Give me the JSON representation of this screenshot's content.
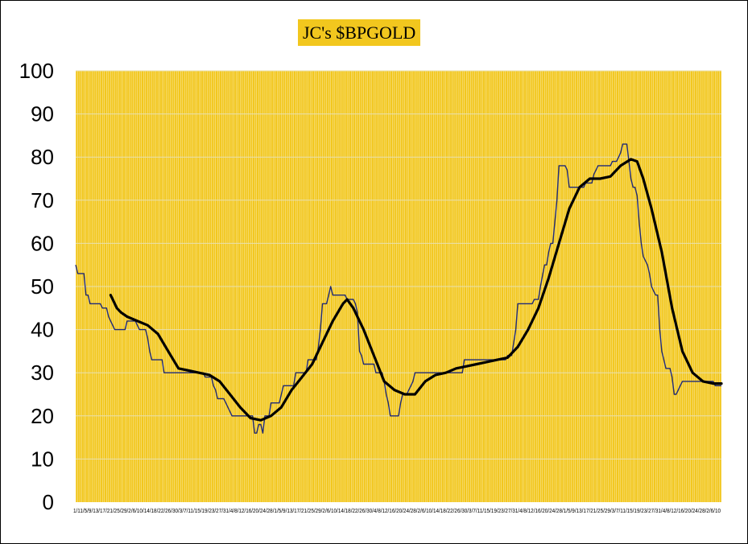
{
  "colors": {
    "plot_background": "#F2C71E",
    "vertical_gridline": "#FFFFFF",
    "horizontal_gridline": "#E8E0B0",
    "title_background": "#F2C71E",
    "raw_series": "#1F2A7A",
    "smoothed_series": "#000000"
  },
  "chart_data": {
    "type": "line",
    "title": "JC's $BPGOLD",
    "xlabel": "",
    "ylabel": "",
    "ylim": [
      0,
      100
    ],
    "y_ticks": [
      "0",
      "10",
      "20",
      "30",
      "40",
      "50",
      "60",
      "70",
      "80",
      "90",
      "100"
    ],
    "x_tick_text": "1/11/5/9/13/17/21/25/29/2/6/10/14/18/22/26/30/3/7/11/15/19/23/27/31/4/8/12/16/20/24/28/1/5/9/13/17/21/25/29/2/6/10/14/18/22/26/30/4/8/12/16/20/24/28/2/6/10/14/18/22/26/30/3/7/11/15/19/23/27/31/4/8/12/16/20/24/28/1/5/9/13/17/21/25/29/3/7/11/15/19/23/27/31/4/8/12/16/20/24/28/2/6/10",
    "grid": {
      "vertical": true,
      "horizontal": true
    },
    "legend": "none",
    "series": [
      {
        "points": [
          [
            0,
            55
          ],
          [
            1,
            53
          ],
          [
            4,
            53
          ],
          [
            5,
            48
          ],
          [
            6,
            48
          ],
          [
            7,
            46
          ],
          [
            12,
            46
          ],
          [
            13,
            45
          ],
          [
            15,
            45
          ],
          [
            16,
            43
          ],
          [
            17,
            42
          ],
          [
            19,
            40
          ],
          [
            24,
            40
          ],
          [
            25,
            42
          ],
          [
            29,
            42
          ],
          [
            30,
            41
          ],
          [
            31,
            40
          ],
          [
            34,
            40
          ],
          [
            35,
            38
          ],
          [
            36,
            35
          ],
          [
            37,
            33
          ],
          [
            42,
            33
          ],
          [
            43,
            30
          ],
          [
            62,
            30
          ],
          [
            63,
            29
          ],
          [
            66,
            29
          ],
          [
            67,
            27
          ],
          [
            68,
            26
          ],
          [
            69,
            24
          ],
          [
            72,
            24
          ],
          [
            73,
            23
          ],
          [
            74,
            22
          ],
          [
            75,
            21
          ],
          [
            76,
            20
          ],
          [
            86,
            20
          ],
          [
            87,
            16
          ],
          [
            88,
            16
          ],
          [
            89,
            18
          ],
          [
            90,
            18
          ],
          [
            91,
            16
          ],
          [
            92,
            20
          ],
          [
            94,
            20
          ],
          [
            95,
            23
          ],
          [
            99,
            23
          ],
          [
            100,
            25
          ],
          [
            101,
            27
          ],
          [
            106,
            27
          ],
          [
            107,
            30
          ],
          [
            112,
            30
          ],
          [
            113,
            33
          ],
          [
            117,
            33
          ],
          [
            118,
            36
          ],
          [
            119,
            40
          ],
          [
            120,
            46
          ],
          [
            122,
            46
          ],
          [
            123,
            48
          ],
          [
            124,
            50
          ],
          [
            125,
            48
          ],
          [
            131,
            48
          ],
          [
            132,
            47
          ],
          [
            135,
            47
          ],
          [
            136,
            46
          ],
          [
            137,
            44
          ],
          [
            138,
            35
          ],
          [
            139,
            34
          ],
          [
            140,
            32
          ],
          [
            145,
            32
          ],
          [
            146,
            30
          ],
          [
            149,
            30
          ],
          [
            150,
            28
          ],
          [
            151,
            25
          ],
          [
            152,
            23
          ],
          [
            153,
            20
          ],
          [
            157,
            20
          ],
          [
            158,
            23
          ],
          [
            159,
            25
          ],
          [
            161,
            25
          ],
          [
            164,
            28
          ],
          [
            165,
            30
          ],
          [
            188,
            30
          ],
          [
            189,
            33
          ],
          [
            209,
            33
          ],
          [
            210,
            34
          ],
          [
            212,
            34
          ],
          [
            213,
            37
          ],
          [
            214,
            40
          ],
          [
            215,
            46
          ],
          [
            222,
            46
          ],
          [
            223,
            47
          ],
          [
            225,
            47
          ],
          [
            226,
            50
          ],
          [
            228,
            55
          ],
          [
            229,
            55
          ],
          [
            230,
            58
          ],
          [
            231,
            60
          ],
          [
            232,
            60
          ],
          [
            233,
            65
          ],
          [
            234,
            70
          ],
          [
            235,
            78
          ],
          [
            238,
            78
          ],
          [
            239,
            77
          ],
          [
            240,
            73
          ],
          [
            247,
            73
          ],
          [
            248,
            74
          ],
          [
            251,
            74
          ],
          [
            252,
            76
          ],
          [
            254,
            78
          ],
          [
            260,
            78
          ],
          [
            261,
            79
          ],
          [
            263,
            79
          ],
          [
            264,
            80
          ],
          [
            265,
            81
          ],
          [
            266,
            83
          ],
          [
            268,
            83
          ],
          [
            269,
            79
          ],
          [
            270,
            75
          ],
          [
            271,
            73
          ],
          [
            272,
            73
          ],
          [
            273,
            71
          ],
          [
            274,
            65
          ],
          [
            275,
            60
          ],
          [
            276,
            57
          ],
          [
            277,
            56
          ],
          [
            278,
            55
          ],
          [
            279,
            53
          ],
          [
            280,
            50
          ],
          [
            281,
            49
          ],
          [
            282,
            48
          ],
          [
            283,
            48
          ],
          [
            284,
            40
          ],
          [
            285,
            35
          ],
          [
            286,
            33
          ],
          [
            287,
            31
          ],
          [
            289,
            31
          ],
          [
            290,
            29
          ],
          [
            291,
            25
          ],
          [
            292,
            25
          ],
          [
            293,
            26
          ],
          [
            294,
            27
          ],
          [
            295,
            28
          ],
          [
            310,
            28
          ],
          [
            311,
            27
          ],
          [
            314,
            27
          ]
        ],
        "x_min": 0,
        "x_max": 314
      },
      {
        "points": [
          [
            17,
            48
          ],
          [
            18,
            47
          ],
          [
            20,
            45
          ],
          [
            22,
            44
          ],
          [
            25,
            43
          ],
          [
            30,
            42
          ],
          [
            35,
            41
          ],
          [
            40,
            39
          ],
          [
            45,
            35
          ],
          [
            50,
            31
          ],
          [
            55,
            30.5
          ],
          [
            60,
            30
          ],
          [
            65,
            29.5
          ],
          [
            70,
            28
          ],
          [
            75,
            25
          ],
          [
            80,
            22
          ],
          [
            85,
            19.5
          ],
          [
            90,
            19
          ],
          [
            95,
            20
          ],
          [
            100,
            22
          ],
          [
            105,
            26
          ],
          [
            110,
            29
          ],
          [
            115,
            32
          ],
          [
            120,
            37
          ],
          [
            125,
            42
          ],
          [
            130,
            46
          ],
          [
            132,
            47
          ],
          [
            135,
            45
          ],
          [
            140,
            40
          ],
          [
            145,
            34
          ],
          [
            150,
            28
          ],
          [
            155,
            26
          ],
          [
            160,
            25
          ],
          [
            165,
            25
          ],
          [
            170,
            28
          ],
          [
            175,
            29.5
          ],
          [
            180,
            30
          ],
          [
            185,
            31
          ],
          [
            190,
            31.5
          ],
          [
            195,
            32
          ],
          [
            200,
            32.5
          ],
          [
            205,
            33
          ],
          [
            210,
            33.5
          ],
          [
            215,
            36
          ],
          [
            220,
            40
          ],
          [
            225,
            45
          ],
          [
            230,
            52
          ],
          [
            235,
            60
          ],
          [
            240,
            68
          ],
          [
            245,
            73
          ],
          [
            250,
            75
          ],
          [
            255,
            75
          ],
          [
            260,
            75.5
          ],
          [
            265,
            78
          ],
          [
            270,
            79.5
          ],
          [
            273,
            79
          ],
          [
            276,
            75
          ],
          [
            280,
            68
          ],
          [
            285,
            58
          ],
          [
            290,
            45
          ],
          [
            295,
            35
          ],
          [
            300,
            30
          ],
          [
            305,
            28
          ],
          [
            310,
            27.5
          ],
          [
            314,
            27.5
          ]
        ],
        "x_min": 0,
        "x_max": 314
      }
    ]
  }
}
